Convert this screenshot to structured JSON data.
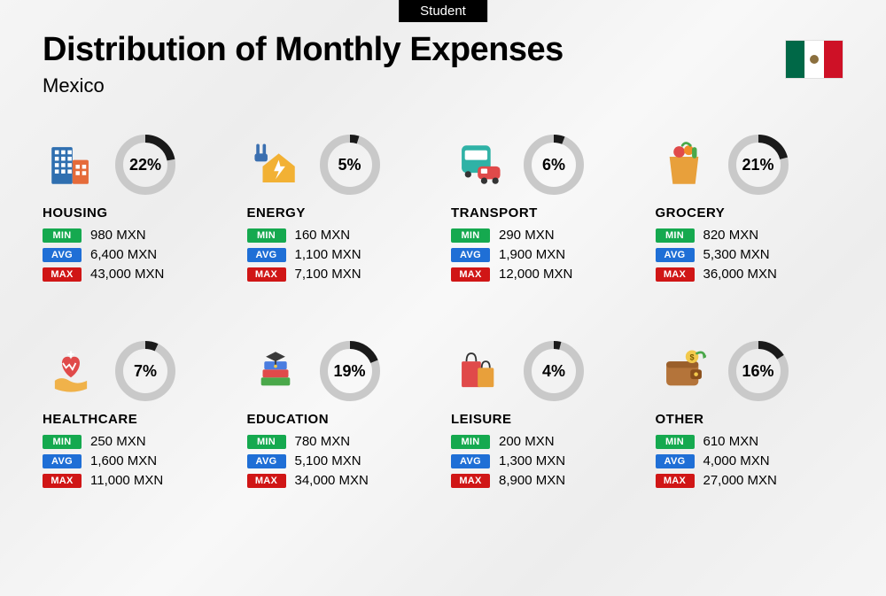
{
  "topbar_label": "Student",
  "title": "Distribution of Monthly Expenses",
  "subtitle": "Mexico",
  "flag_colors": {
    "green": "#006847",
    "white": "#ffffff",
    "red": "#ce1126"
  },
  "ring_style": {
    "size": 68,
    "stroke_width": 9,
    "track_color": "#c9c9c9",
    "progress_color": "#1a1a1a",
    "font_size": 18,
    "font_weight": 800
  },
  "badge_colors": {
    "min": "#15a94f",
    "avg": "#1f6fd6",
    "max": "#d01616"
  },
  "badge_labels": {
    "min": "MIN",
    "avg": "AVG",
    "max": "MAX"
  },
  "currency_suffix": " MXN",
  "categories": [
    {
      "key": "housing",
      "name": "HOUSING",
      "percent": 22,
      "min": "980",
      "avg": "6,400",
      "max": "43,000",
      "icon": "buildings"
    },
    {
      "key": "energy",
      "name": "ENERGY",
      "percent": 5,
      "min": "160",
      "avg": "1,100",
      "max": "7,100",
      "icon": "energy-house"
    },
    {
      "key": "transport",
      "name": "TRANSPORT",
      "percent": 6,
      "min": "290",
      "avg": "1,900",
      "max": "12,000",
      "icon": "bus-car"
    },
    {
      "key": "grocery",
      "name": "GROCERY",
      "percent": 21,
      "min": "820",
      "avg": "5,300",
      "max": "36,000",
      "icon": "grocery-bag"
    },
    {
      "key": "healthcare",
      "name": "HEALTHCARE",
      "percent": 7,
      "min": "250",
      "avg": "1,600",
      "max": "11,000",
      "icon": "heart-hand"
    },
    {
      "key": "education",
      "name": "EDUCATION",
      "percent": 19,
      "min": "780",
      "avg": "5,100",
      "max": "34,000",
      "icon": "grad-books"
    },
    {
      "key": "leisure",
      "name": "LEISURE",
      "percent": 4,
      "min": "200",
      "avg": "1,300",
      "max": "8,900",
      "icon": "shopping-bags"
    },
    {
      "key": "other",
      "name": "OTHER",
      "percent": 16,
      "min": "610",
      "avg": "4,000",
      "max": "27,000",
      "icon": "wallet"
    }
  ],
  "icons": {
    "buildings": {
      "primary": "#2f6fb0",
      "accent": "#e56b3a"
    },
    "energy-house": {
      "primary": "#f2b134",
      "accent": "#3a6fb0"
    },
    "bus-car": {
      "primary": "#2fb2a6",
      "accent": "#e04a4a"
    },
    "grocery-bag": {
      "primary": "#e8a03b",
      "accent": "#4aa84a"
    },
    "heart-hand": {
      "primary": "#e04a4a",
      "accent": "#f0b24a"
    },
    "grad-books": {
      "primary": "#3a3a3a",
      "accent1": "#4a7de0",
      "accent2": "#e04a4a",
      "accent3": "#4aa84a"
    },
    "shopping-bags": {
      "primary": "#e04a4a",
      "accent": "#e8a03b"
    },
    "wallet": {
      "primary": "#b4743a",
      "accent": "#4aa84a",
      "coin": "#f2c94c"
    }
  },
  "background": "#f2f2f2",
  "text_color": "#000000"
}
